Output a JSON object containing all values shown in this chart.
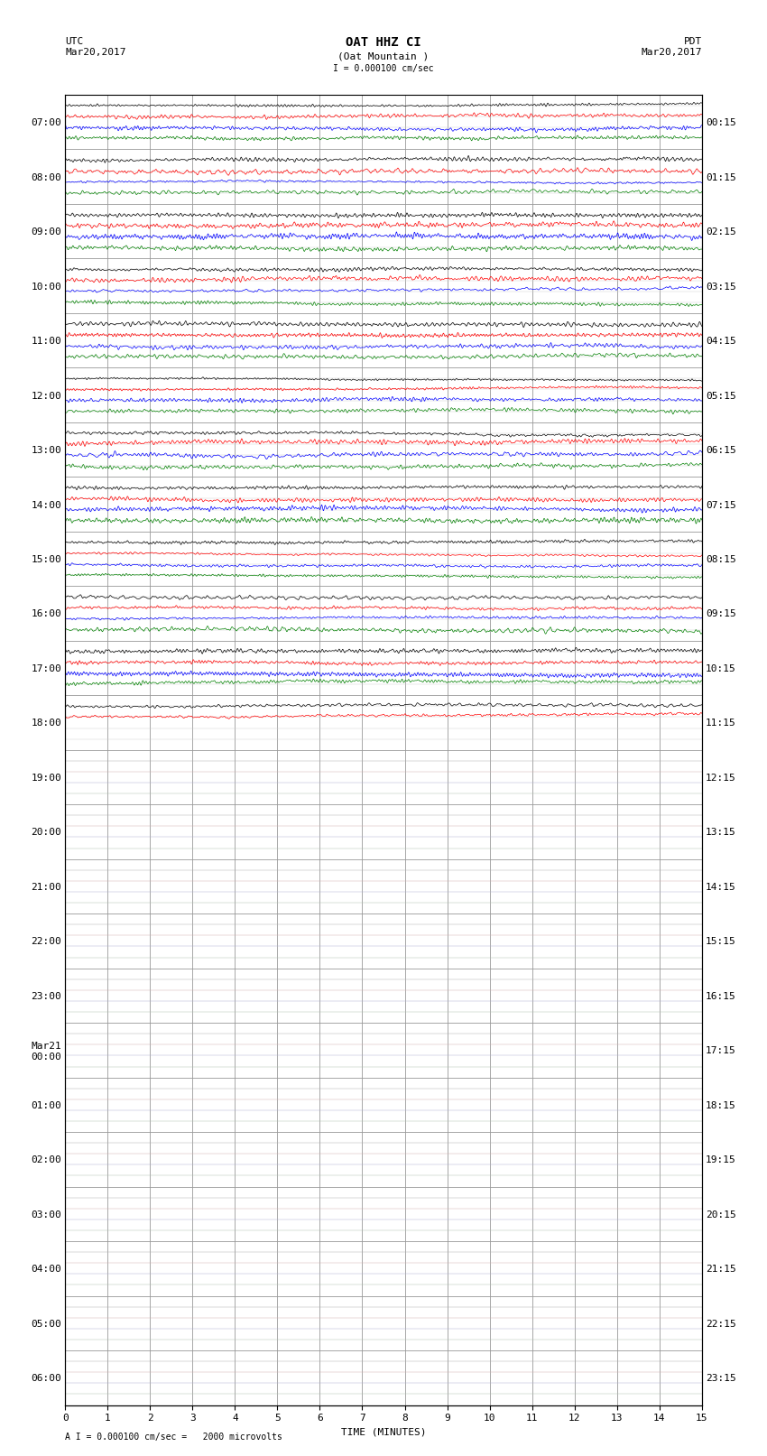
{
  "title_line1": "OAT HHZ CI",
  "title_line2": "(Oat Mountain )",
  "scale_label": "I = 0.000100 cm/sec",
  "footer_label": "A I = 0.000100 cm/sec =   2000 microvolts",
  "xlabel": "TIME (MINUTES)",
  "left_times_utc": [
    "07:00",
    "08:00",
    "09:00",
    "10:00",
    "11:00",
    "12:00",
    "13:00",
    "14:00",
    "15:00",
    "16:00",
    "17:00",
    "18:00",
    "19:00",
    "20:00",
    "21:00",
    "22:00",
    "23:00",
    "Mar21\n00:00",
    "01:00",
    "02:00",
    "03:00",
    "04:00",
    "05:00",
    "06:00"
  ],
  "right_times_pdt": [
    "00:15",
    "01:15",
    "02:15",
    "03:15",
    "04:15",
    "05:15",
    "06:15",
    "07:15",
    "08:15",
    "09:15",
    "10:15",
    "11:15",
    "12:15",
    "13:15",
    "14:15",
    "15:15",
    "16:15",
    "17:15",
    "18:15",
    "19:15",
    "20:15",
    "21:15",
    "22:15",
    "23:15"
  ],
  "n_rows": 24,
  "n_active_rows": 12,
  "last_partial_traces": 2,
  "traces_per_row": 4,
  "trace_colors": [
    "black",
    "red",
    "blue",
    "green"
  ],
  "minutes": 15,
  "background_color": "white",
  "grid_color": "#999999",
  "subgrid_color": "#cccccc",
  "font_size_title": 10,
  "font_size_labels": 8,
  "font_size_ticks": 8
}
